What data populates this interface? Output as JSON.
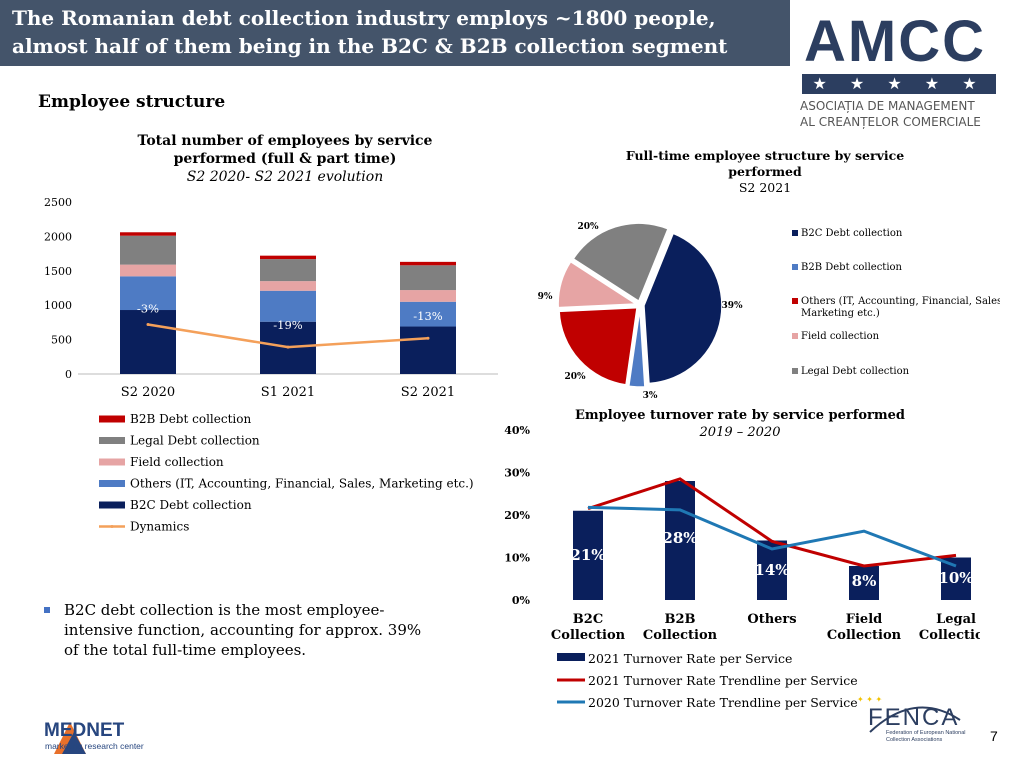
{
  "header": {
    "title": "The Romanian debt collection industry employs ~1800 people, almost half of them being in the B2C & B2B collection segment"
  },
  "logo_amcc": {
    "name": "AMCC",
    "stars": "★ ★ ★ ★ ★",
    "subtitle_line1": "ASOCIAȚIA DE MANAGEMENT",
    "subtitle_line2": "AL CREANȚELOR COMERCIALE",
    "color": "#2c3e60"
  },
  "section_heading": "Employee structure",
  "bullet": {
    "text": "B2C debt collection is the most employee-intensive function, accounting for approx. 39% of the total full-time employees."
  },
  "logo_mednet": {
    "name": "MEDNET",
    "tagline": "marketing research center"
  },
  "logo_fenca": {
    "name": "FENCA",
    "tagline": "Federation of European National Collection Associations"
  },
  "page_number": "7",
  "colors": {
    "header_bg": "#44546a",
    "b2c": "#0a1f5c",
    "others": "#4e7bc4",
    "field": "#e6a4a4",
    "legal": "#808080",
    "b2b": "#c00000",
    "dynamics": "#f4a05a",
    "trend2021": "#c00000",
    "trend2020": "#1f78b4"
  },
  "chart_data": [
    {
      "type": "bar",
      "stacked": true,
      "title": "Total number of employees by service performed (full & part time)",
      "subtitle": "S2 2020- S2 2021 evolution",
      "categories": [
        "S2 2020",
        "S1 2021",
        "S2 2021"
      ],
      "ylim": [
        0,
        2500
      ],
      "yticks": [
        "0",
        "500",
        "1000",
        "1500",
        "2000",
        "2500"
      ],
      "series": [
        {
          "name": "B2C Debt collection",
          "values": [
            930,
            760,
            690
          ]
        },
        {
          "name": "Others (IT, Accounting, Financial, Sales, Marketing etc.)",
          "values": [
            490,
            450,
            360
          ]
        },
        {
          "name": "Field collection",
          "values": [
            170,
            140,
            170
          ]
        },
        {
          "name": "Legal Debt collection",
          "values": [
            420,
            320,
            360
          ]
        },
        {
          "name": "B2B Debt collection",
          "values": [
            50,
            50,
            50
          ]
        }
      ],
      "line": {
        "name": "Dynamics",
        "values": [
          720,
          390,
          520
        ]
      },
      "line_labels": [
        "-3%",
        "-19%",
        "-13%"
      ],
      "legend": [
        "B2B Debt collection",
        "Legal Debt collection",
        "Field collection",
        "Others (IT, Accounting, Financial, Sales, Marketing etc.)",
        "B2C Debt collection",
        "Dynamics"
      ]
    },
    {
      "type": "pie",
      "title": "Full-time employee structure by service performed",
      "subtitle": "S2 2021",
      "slices": [
        {
          "name": "B2C Debt collection",
          "value": 39,
          "label": "39%"
        },
        {
          "name": "B2B Debt collection",
          "value": 3,
          "label": "3%"
        },
        {
          "name": "Others (IT, Accounting, Financial, Sales, Marketing etc.)",
          "value": 20,
          "label": "20%"
        },
        {
          "name": "Field collection",
          "value": 9,
          "label": "9%"
        },
        {
          "name": "Legal Debt collection",
          "value": 20,
          "label": "20%"
        }
      ],
      "legend_line1": [
        "B2C Debt collection",
        "B2B Debt collection",
        "Others (IT, Accounting, Financial, Sales,",
        "Field collection",
        "Legal Debt collection"
      ],
      "legend_others_line2": "Marketing etc.)"
    },
    {
      "type": "bar",
      "title": "Employee turnover rate by service performed",
      "subtitle": "2019 – 2020",
      "categories": [
        "B2C Collection",
        "B2B Collection",
        "Others",
        "Field Collection",
        "Legal Collection"
      ],
      "category_lines": [
        [
          "B2C",
          "Collection"
        ],
        [
          "B2B",
          "Collection"
        ],
        [
          "Others",
          ""
        ],
        [
          "Field",
          "Collection"
        ],
        [
          "Legal",
          "Collection"
        ]
      ],
      "ylim": [
        0,
        40
      ],
      "yticks": [
        "0%",
        "10%",
        "20%",
        "30%",
        "40%"
      ],
      "series": [
        {
          "name": "2021 Turnover Rate per Service",
          "values": [
            21,
            28,
            14,
            8,
            10
          ],
          "labels": [
            "21%",
            "28%",
            "14%",
            "8%",
            "10%"
          ]
        },
        {
          "name": "2021 Turnover Rate Trendline per Service",
          "values": [
            21.5,
            28.5,
            13.8,
            8,
            10.5
          ]
        },
        {
          "name": "2020 Turnover Rate Trendline per Service",
          "values": [
            21.8,
            21.2,
            12,
            16.2,
            8
          ]
        }
      ]
    }
  ]
}
